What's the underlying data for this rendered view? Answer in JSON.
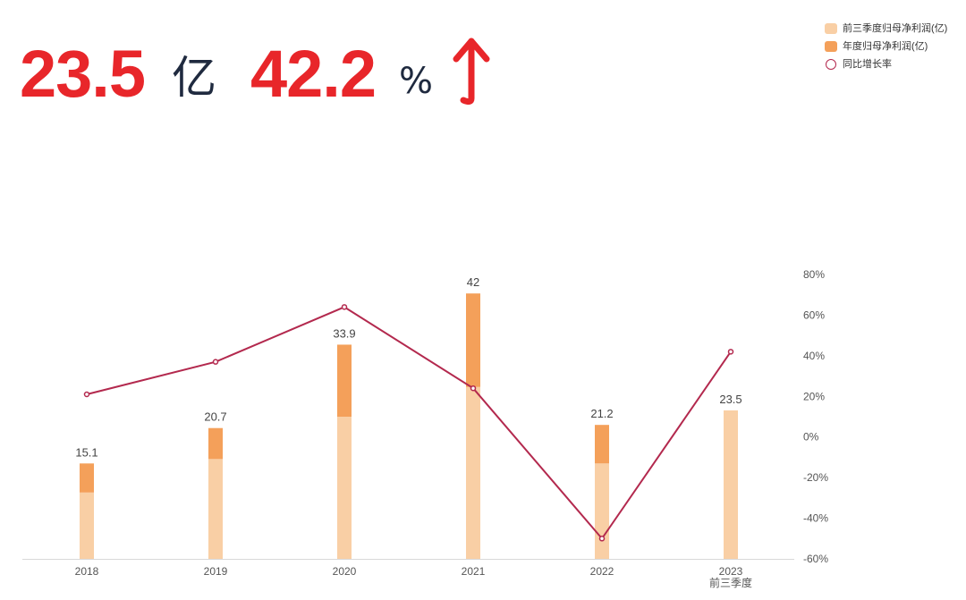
{
  "headline": {
    "value": "23.5",
    "value_unit": "亿",
    "growth": "42.2",
    "growth_unit": "%",
    "arrow_color": "#e8262a",
    "value_color": "#e8262a"
  },
  "colors": {
    "q3_bar": "#f9cfa5",
    "annual_bar": "#f4a05a",
    "line": "#b3294e"
  },
  "chart_data": {
    "type": "bar",
    "categories": [
      "2018",
      "2019",
      "2020",
      "2021",
      "2022",
      "2023"
    ],
    "category_sublabels": [
      "",
      "",
      "",
      "",
      "",
      "前三季度"
    ],
    "legend_position": "top-right",
    "series": [
      {
        "name": "前三季度归母净利润(亿)",
        "type": "bar",
        "values": [
          10.5,
          15.8,
          22.5,
          27.2,
          15.1,
          23.5
        ]
      },
      {
        "name": "年度归母净利润(亿)",
        "type": "bar",
        "stacked": true,
        "values": [
          15.1,
          20.7,
          33.9,
          42,
          21.2,
          null
        ]
      },
      {
        "name": "同比增长率",
        "type": "line",
        "axis": "right",
        "values": [
          21,
          37,
          64,
          24,
          -50,
          42
        ]
      }
    ],
    "bar_labels": [
      "15.1",
      "20.7",
      "33.9",
      "42",
      "21.2",
      "23.5"
    ],
    "left_ylim": [
      0,
      45
    ],
    "right_ylim": [
      -60,
      80
    ],
    "right_ticks": [
      "80%",
      "60%",
      "40%",
      "20%",
      "0%",
      "-20%",
      "-40%",
      "-60%"
    ],
    "grid": false
  }
}
